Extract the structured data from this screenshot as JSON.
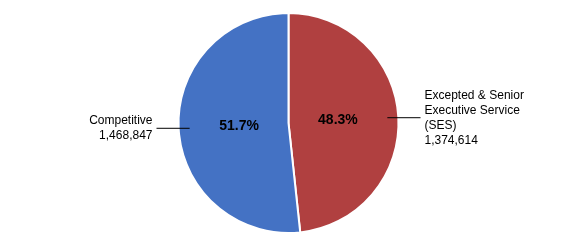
{
  "chart_data": {
    "type": "pie",
    "categories": [
      "Excepted & Senior\nExecutive Service\n(SES)\n1,374,614",
      "Competitive\n1,468,847"
    ],
    "values": [
      48.3,
      51.7
    ],
    "value_labels": [
      "48.3%",
      "51.7%"
    ],
    "colors": [
      "#B04040",
      "#4472C4"
    ],
    "data_labels": true
  }
}
